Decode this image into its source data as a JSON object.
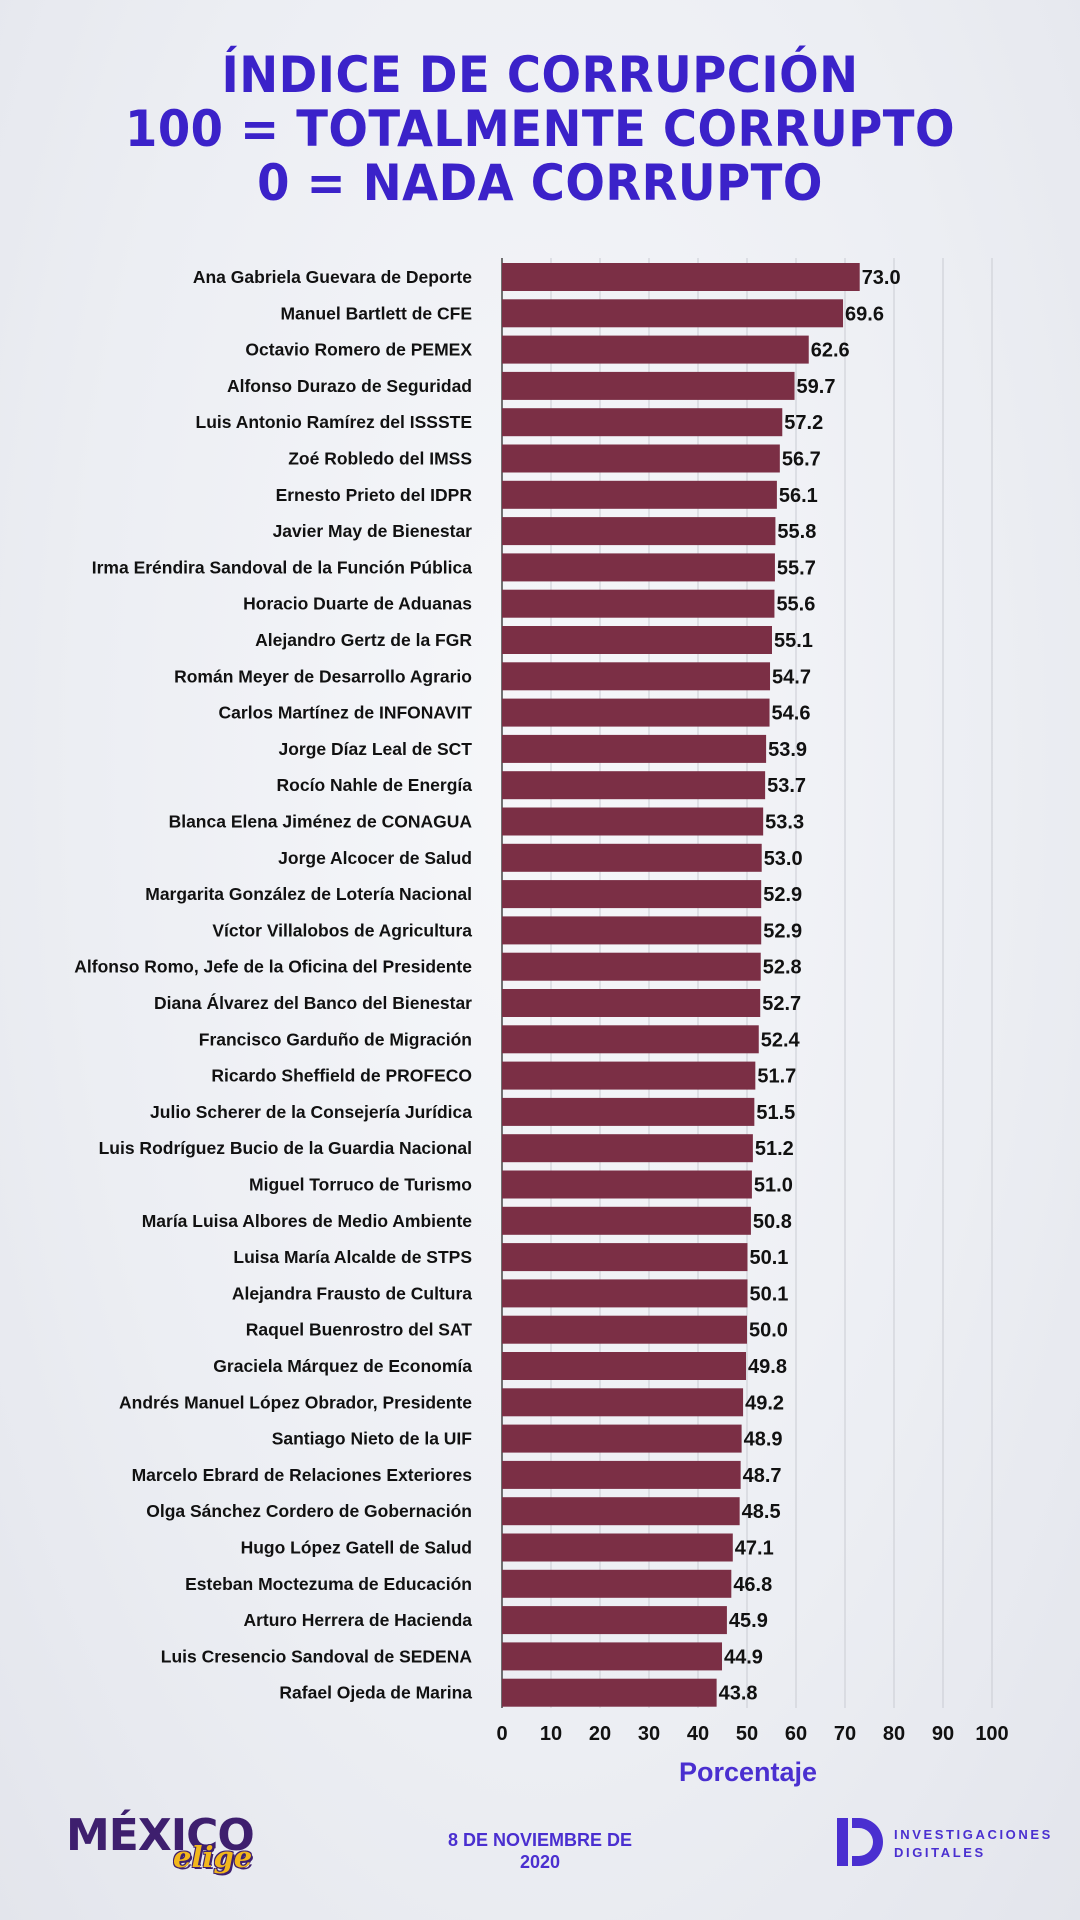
{
  "header": {
    "title_line1": "ÍNDICE DE CORRUPCIÓN",
    "title_line2": "100 = TOTALMENTE CORRUPTO",
    "title_line3": "0 = NADA CORRUPTO"
  },
  "chart_data": {
    "type": "bar",
    "orientation": "horizontal",
    "xlabel": "Porcentaje",
    "xlim": [
      0,
      100
    ],
    "x_ticks": [
      0,
      10,
      20,
      30,
      40,
      50,
      60,
      70,
      80,
      90,
      100
    ],
    "grid": true,
    "bar_color": "#7b2f45",
    "categories": [
      "Ana Gabriela Guevara de Deporte",
      "Manuel Bartlett de CFE",
      "Octavio Romero de PEMEX",
      "Alfonso Durazo de Seguridad",
      "Luis Antonio Ramírez del ISSSTE",
      "Zoé Robledo del IMSS",
      "Ernesto Prieto del IDPR",
      "Javier May de Bienestar",
      "Irma Eréndira Sandoval de la Función Pública",
      "Horacio Duarte de Aduanas",
      "Alejandro Gertz de la FGR",
      "Román Meyer de Desarrollo Agrario",
      "Carlos Martínez de INFONAVIT",
      "Jorge Díaz Leal de SCT",
      "Rocío Nahle de Energía",
      "Blanca Elena Jiménez de CONAGUA",
      "Jorge Alcocer de Salud",
      "Margarita González de Lotería Nacional",
      "Víctor Villalobos de Agricultura",
      "Alfonso Romo, Jefe de la Oficina del Presidente",
      "Diana Álvarez del Banco del Bienestar",
      "Francisco Garduño de Migración",
      "Ricardo Sheffield de PROFECO",
      "Julio Scherer de la Consejería Jurídica",
      "Luis Rodríguez Bucio de la Guardia Nacional",
      "Miguel Torruco de Turismo",
      "María Luisa Albores de Medio Ambiente",
      "Luisa María Alcalde de STPS",
      "Alejandra Frausto de Cultura",
      "Raquel Buenrostro del SAT",
      "Graciela Márquez de Economía",
      "Andrés Manuel López Obrador, Presidente",
      "Santiago Nieto de la UIF",
      "Marcelo Ebrard de Relaciones Exteriores",
      "Olga Sánchez Cordero de Gobernación",
      "Hugo López Gatell de Salud",
      "Esteban Moctezuma de Educación",
      "Arturo Herrera de Hacienda",
      "Luis Cresencio Sandoval de SEDENA",
      "Rafael Ojeda de Marina"
    ],
    "values": [
      73.0,
      69.6,
      62.6,
      59.7,
      57.2,
      56.7,
      56.1,
      55.8,
      55.7,
      55.6,
      55.1,
      54.7,
      54.6,
      53.9,
      53.7,
      53.3,
      53.0,
      52.9,
      52.9,
      52.8,
      52.7,
      52.4,
      51.7,
      51.5,
      51.2,
      51.0,
      50.8,
      50.1,
      50.1,
      50.0,
      49.8,
      49.2,
      48.9,
      48.7,
      48.5,
      47.1,
      46.8,
      45.9,
      44.9,
      43.8
    ]
  },
  "footer": {
    "logo_left_text1": "MÉXICO",
    "logo_left_text2": "elige",
    "date_line1": "8 DE NOVIEMBRE  DE",
    "date_line2": "2020",
    "logo_right_line1": "INVESTIGACIONES",
    "logo_right_line2": "DIGITALES"
  },
  "colors": {
    "title": "#3b22c9",
    "bar": "#7b2f45",
    "accent": "#4a2fd0"
  }
}
